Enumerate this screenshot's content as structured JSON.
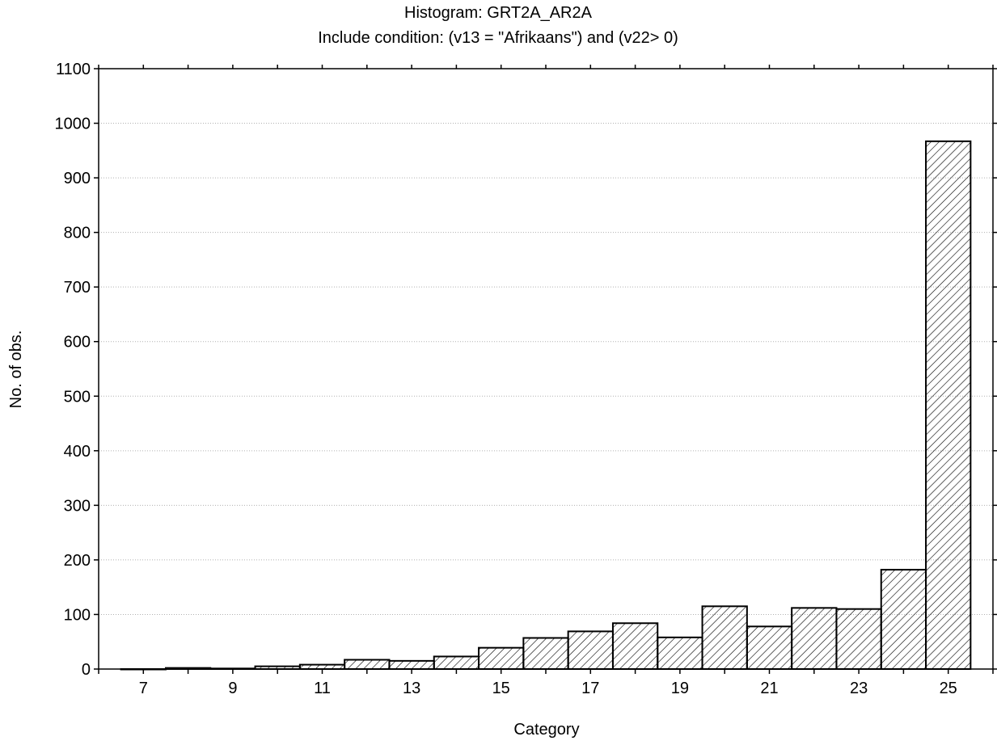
{
  "chart_data": {
    "type": "bar",
    "title": "Histogram: GRT2A_AR2A",
    "subtitle": "Include condition: (v13 = \"Afrikaans\")  and (v22> 0)",
    "xlabel": "Category",
    "ylabel": "No. of obs.",
    "categories": [
      7,
      8,
      9,
      10,
      11,
      12,
      13,
      14,
      15,
      16,
      17,
      18,
      19,
      20,
      21,
      22,
      23,
      24,
      25
    ],
    "values": [
      0,
      2,
      1,
      5,
      8,
      17,
      15,
      23,
      39,
      57,
      69,
      84,
      58,
      115,
      78,
      112,
      110,
      182,
      967
    ],
    "x_tick_labels": [
      "7",
      "9",
      "11",
      "13",
      "15",
      "17",
      "19",
      "21",
      "23",
      "25"
    ],
    "y_ticks": [
      0,
      100,
      200,
      300,
      400,
      500,
      600,
      700,
      800,
      900,
      1000,
      1100
    ],
    "ylim": [
      0,
      1100
    ],
    "xlim": [
      6,
      26
    ],
    "grid": "horizontal dotted",
    "bar_fill": "diagonal hatch",
    "colors": {
      "bar_stroke": "#000000",
      "hatch": "#000000",
      "grid": "#b0b0b0",
      "background": "#ffffff"
    }
  }
}
